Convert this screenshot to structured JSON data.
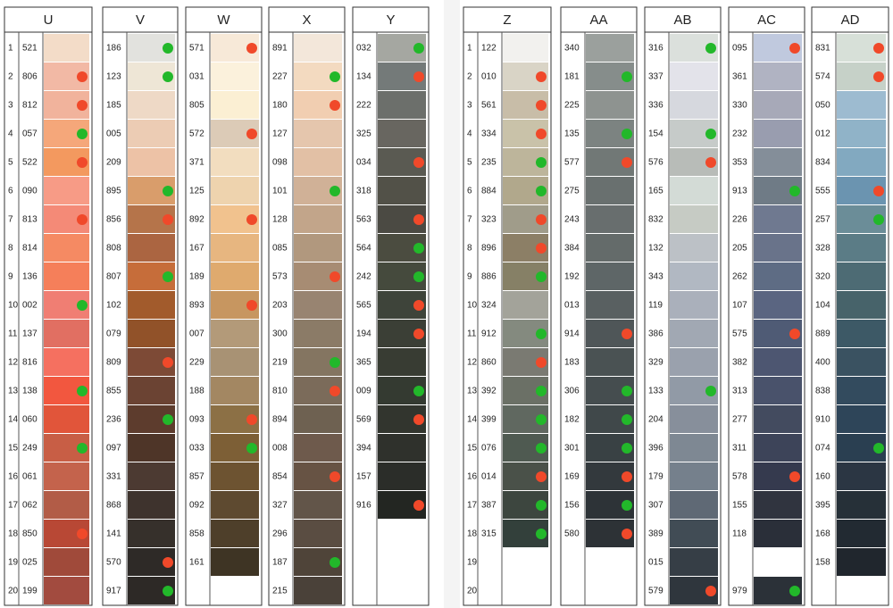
{
  "columns": [
    {
      "title": "U",
      "row_numbers": [
        "1",
        "2",
        "3",
        "4",
        "5",
        "6",
        "7",
        "8",
        "9",
        "10",
        "11",
        "12",
        "13",
        "14",
        "15",
        "16",
        "17",
        "18",
        "19",
        "20"
      ],
      "entries": [
        {
          "code": "521",
          "color": "#f3dcc8"
        },
        {
          "code": "806",
          "color": "#f2b9a5",
          "dot": "red"
        },
        {
          "code": "812",
          "color": "#f1b39c",
          "dot": "red"
        },
        {
          "code": "057",
          "color": "#f5a77a",
          "dot": "green"
        },
        {
          "code": "522",
          "color": "#f3995f",
          "dot": "red"
        },
        {
          "code": "090",
          "color": "#f79b86"
        },
        {
          "code": "813",
          "color": "#f48a77",
          "dot": "red"
        },
        {
          "code": "814",
          "color": "#f58a63"
        },
        {
          "code": "136",
          "color": "#f57f5a"
        },
        {
          "code": "002",
          "color": "#f07e73",
          "dot": "green"
        },
        {
          "code": "137",
          "color": "#e16f62"
        },
        {
          "code": "816",
          "color": "#f57060"
        },
        {
          "code": "138",
          "color": "#f2573f",
          "dot": "green"
        },
        {
          "code": "060",
          "color": "#e1553a"
        },
        {
          "code": "249",
          "color": "#c85e45",
          "dot": "green"
        },
        {
          "code": "061",
          "color": "#c4634c"
        },
        {
          "code": "062",
          "color": "#b25c47"
        },
        {
          "code": "850",
          "color": "#b84835",
          "dot": "red"
        },
        {
          "code": "025",
          "color": "#a04a3a"
        },
        {
          "code": "199",
          "color": "#a24b3f"
        }
      ]
    },
    {
      "title": "V",
      "entries": [
        {
          "code": "186",
          "color": "#e2e2de",
          "dot": "green"
        },
        {
          "code": "123",
          "color": "#eee6d6",
          "dot": "green"
        },
        {
          "code": "185",
          "color": "#eed9c6"
        },
        {
          "code": "005",
          "color": "#ecccb4"
        },
        {
          "code": "209",
          "color": "#edc2a6"
        },
        {
          "code": "895",
          "color": "#d99d6b",
          "dot": "green"
        },
        {
          "code": "856",
          "color": "#b5744a",
          "dot": "red"
        },
        {
          "code": "808",
          "color": "#ab6541"
        },
        {
          "code": "807",
          "color": "#c66d3a",
          "dot": "green"
        },
        {
          "code": "102",
          "color": "#a25b2c"
        },
        {
          "code": "079",
          "color": "#915229"
        },
        {
          "code": "809",
          "color": "#7d4a36",
          "dot": "red"
        },
        {
          "code": "855",
          "color": "#6b4333"
        },
        {
          "code": "236",
          "color": "#5d3c2d",
          "dot": "green"
        },
        {
          "code": "097",
          "color": "#4e3528"
        },
        {
          "code": "331",
          "color": "#4c3a32"
        },
        {
          "code": "868",
          "color": "#3e332d"
        },
        {
          "code": "141",
          "color": "#36302b"
        },
        {
          "code": "570",
          "color": "#2e2a27",
          "dot": "red"
        },
        {
          "code": "917",
          "color": "#2d2926",
          "dot": "green"
        }
      ]
    },
    {
      "title": "W",
      "entries": [
        {
          "code": "571",
          "color": "#f7e9d8",
          "dot": "red"
        },
        {
          "code": "031",
          "color": "#fbf1dc"
        },
        {
          "code": "805",
          "color": "#fbefd3"
        },
        {
          "code": "572",
          "color": "#dccbb7",
          "dot": "red"
        },
        {
          "code": "371",
          "color": "#f2ddbf"
        },
        {
          "code": "125",
          "color": "#eed3ae"
        },
        {
          "code": "892",
          "color": "#f1c28e",
          "dot": "red"
        },
        {
          "code": "167",
          "color": "#e7b680"
        },
        {
          "code": "189",
          "color": "#dfaa6e"
        },
        {
          "code": "893",
          "color": "#c79660",
          "dot": "red"
        },
        {
          "code": "007",
          "color": "#b39a79"
        },
        {
          "code": "229",
          "color": "#a89274"
        },
        {
          "code": "188",
          "color": "#a38762"
        },
        {
          "code": "093",
          "color": "#8c7045",
          "dot": "red"
        },
        {
          "code": "033",
          "color": "#7d5f36",
          "dot": "green"
        },
        {
          "code": "857",
          "color": "#6d5331"
        },
        {
          "code": "092",
          "color": "#5e4a30"
        },
        {
          "code": "858",
          "color": "#4e3f2a"
        },
        {
          "code": "161",
          "color": "#3e3424"
        }
      ]
    },
    {
      "title": "X",
      "entries": [
        {
          "code": "891",
          "color": "#f3e7da"
        },
        {
          "code": "227",
          "color": "#f3dac0",
          "dot": "green"
        },
        {
          "code": "180",
          "color": "#f1ceb1",
          "dot": "red"
        },
        {
          "code": "127",
          "color": "#e5c6ad"
        },
        {
          "code": "098",
          "color": "#e2c0a5"
        },
        {
          "code": "101",
          "color": "#d0b197",
          "dot": "green"
        },
        {
          "code": "128",
          "color": "#c2a58a"
        },
        {
          "code": "085",
          "color": "#b1987e"
        },
        {
          "code": "573",
          "color": "#a78c73",
          "dot": "red"
        },
        {
          "code": "203",
          "color": "#988471"
        },
        {
          "code": "300",
          "color": "#8b7b67"
        },
        {
          "code": "219",
          "color": "#847561",
          "dot": "green"
        },
        {
          "code": "810",
          "color": "#7b6b5a",
          "dot": "red"
        },
        {
          "code": "894",
          "color": "#6e6151"
        },
        {
          "code": "008",
          "color": "#6e5a4c"
        },
        {
          "code": "854",
          "color": "#675344",
          "dot": "red"
        },
        {
          "code": "327",
          "color": "#625549"
        },
        {
          "code": "296",
          "color": "#5a4d42"
        },
        {
          "code": "187",
          "color": "#4f4439",
          "dot": "green"
        },
        {
          "code": "215",
          "color": "#4a4139"
        }
      ]
    },
    {
      "title": "Y",
      "entries": [
        {
          "code": "032",
          "color": "#a5a7a1",
          "dot": "green"
        },
        {
          "code": "134",
          "color": "#747a79",
          "dot": "red"
        },
        {
          "code": "222",
          "color": "#6c6f6b"
        },
        {
          "code": "325",
          "color": "#686660"
        },
        {
          "code": "034",
          "color": "#5a5a52",
          "dot": "red"
        },
        {
          "code": "318",
          "color": "#525148"
        },
        {
          "code": "563",
          "color": "#4b4a43",
          "dot": "red"
        },
        {
          "code": "564",
          "color": "#4b4c40",
          "dot": "green"
        },
        {
          "code": "242",
          "color": "#454a3d",
          "dot": "green"
        },
        {
          "code": "565",
          "color": "#3e443a",
          "dot": "red"
        },
        {
          "code": "194",
          "color": "#3b3f36",
          "dot": "red"
        },
        {
          "code": "365",
          "color": "#383c33"
        },
        {
          "code": "009",
          "color": "#343a31",
          "dot": "green"
        },
        {
          "code": "569",
          "color": "#32352e",
          "dot": "red"
        },
        {
          "code": "394",
          "color": "#2f312c"
        },
        {
          "code": "157",
          "color": "#2b2d29"
        },
        {
          "code": "916",
          "color": "#232622",
          "dot": "red"
        }
      ]
    },
    {
      "title": "Z",
      "row_numbers": [
        "1",
        "2",
        "3",
        "4",
        "5",
        "6",
        "7",
        "8",
        "9",
        "10",
        "11",
        "12",
        "13",
        "14",
        "15",
        "16",
        "17",
        "18",
        "19",
        "20"
      ],
      "entries": [
        {
          "code": "122",
          "color": "#f2f1ee"
        },
        {
          "code": "010",
          "color": "#d9d4c6",
          "dot": "red"
        },
        {
          "code": "561",
          "color": "#c8bda8",
          "dot": "red"
        },
        {
          "code": "334",
          "color": "#c9c2a9",
          "dot": "red"
        },
        {
          "code": "235",
          "color": "#bdb59b",
          "dot": "green"
        },
        {
          "code": "884",
          "color": "#b1a88c",
          "dot": "green"
        },
        {
          "code": "323",
          "color": "#a09c8a",
          "dot": "red"
        },
        {
          "code": "896",
          "color": "#8c7f66",
          "dot": "red"
        },
        {
          "code": "886",
          "color": "#868066",
          "dot": "green"
        },
        {
          "code": "324",
          "color": "#a3a39a"
        },
        {
          "code": "912",
          "color": "#848a7f",
          "dot": "green"
        },
        {
          "code": "860",
          "color": "#7a7a72",
          "dot": "red"
        },
        {
          "code": "392",
          "color": "#6b7066",
          "dot": "green"
        },
        {
          "code": "399",
          "color": "#606860",
          "dot": "green"
        },
        {
          "code": "076",
          "color": "#4f5a51",
          "dot": "green"
        },
        {
          "code": "014",
          "color": "#4a5149",
          "dot": "red"
        },
        {
          "code": "387",
          "color": "#3d463f",
          "dot": "green"
        },
        {
          "code": "315",
          "color": "#33403b",
          "dot": "green"
        }
      ]
    },
    {
      "title": "AA",
      "entries": [
        {
          "code": "340",
          "color": "#9ba09d"
        },
        {
          "code": "181",
          "color": "#868d8b",
          "dot": "green"
        },
        {
          "code": "225",
          "color": "#8e9390"
        },
        {
          "code": "135",
          "color": "#7c8381",
          "dot": "green"
        },
        {
          "code": "577",
          "color": "#717876",
          "dot": "red"
        },
        {
          "code": "275",
          "color": "#69706f"
        },
        {
          "code": "243",
          "color": "#686e6e"
        },
        {
          "code": "384",
          "color": "#646b6a"
        },
        {
          "code": "192",
          "color": "#5e6667"
        },
        {
          "code": "013",
          "color": "#596061"
        },
        {
          "code": "914",
          "color": "#4f5658",
          "dot": "red"
        },
        {
          "code": "183",
          "color": "#4a5253"
        },
        {
          "code": "306",
          "color": "#454d4f",
          "dot": "green"
        },
        {
          "code": "182",
          "color": "#40484a",
          "dot": "green"
        },
        {
          "code": "301",
          "color": "#394144",
          "dot": "green"
        },
        {
          "code": "169",
          "color": "#33393d",
          "dot": "red"
        },
        {
          "code": "156",
          "color": "#2d3337",
          "dot": "green"
        },
        {
          "code": "580",
          "color": "#2d3236",
          "dot": "red"
        }
      ]
    },
    {
      "title": "AB",
      "entries": [
        {
          "code": "316",
          "color": "#dbe0dc",
          "dot": "green"
        },
        {
          "code": "337",
          "color": "#e3e3ea"
        },
        {
          "code": "336",
          "color": "#d6d8de"
        },
        {
          "code": "154",
          "color": "#c6cbc9",
          "dot": "green"
        },
        {
          "code": "576",
          "color": "#b8bcb8",
          "dot": "red"
        },
        {
          "code": "165",
          "color": "#d3dbd6"
        },
        {
          "code": "832",
          "color": "#c6cbc4"
        },
        {
          "code": "132",
          "color": "#bcc1c6"
        },
        {
          "code": "343",
          "color": "#b1b8c2"
        },
        {
          "code": "119",
          "color": "#aab0bb"
        },
        {
          "code": "386",
          "color": "#a1a8b3"
        },
        {
          "code": "329",
          "color": "#9aa1ad"
        },
        {
          "code": "133",
          "color": "#919aa6",
          "dot": "green"
        },
        {
          "code": "204",
          "color": "#878f9b"
        },
        {
          "code": "396",
          "color": "#7e8893"
        },
        {
          "code": "179",
          "color": "#75808c"
        },
        {
          "code": "307",
          "color": "#5f6975"
        },
        {
          "code": "389",
          "color": "#414c55"
        },
        {
          "code": "015",
          "color": "#363e46"
        },
        {
          "code": "579",
          "color": "#2f363d",
          "dot": "red"
        }
      ]
    },
    {
      "title": "AC",
      "entries": [
        {
          "code": "095",
          "color": "#c0c9de",
          "dot": "red"
        },
        {
          "code": "361",
          "color": "#b0b3c2"
        },
        {
          "code": "330",
          "color": "#a7a9b8"
        },
        {
          "code": "232",
          "color": "#999daf"
        },
        {
          "code": "353",
          "color": "#848e99"
        },
        {
          "code": "913",
          "color": "#6f7b86",
          "dot": "green"
        },
        {
          "code": "226",
          "color": "#6f7990"
        },
        {
          "code": "205",
          "color": "#69738a"
        },
        {
          "code": "262",
          "color": "#5e6c84"
        },
        {
          "code": "107",
          "color": "#5a6581"
        },
        {
          "code": "575",
          "color": "#4f5b75",
          "dot": "red"
        },
        {
          "code": "382",
          "color": "#4d5671"
        },
        {
          "code": "313",
          "color": "#49526b"
        },
        {
          "code": "277",
          "color": "#434b5f"
        },
        {
          "code": "311",
          "color": "#3d4459"
        },
        {
          "code": "578",
          "color": "#353a4e",
          "dot": "red"
        },
        {
          "code": "155",
          "color": "#30343f"
        },
        {
          "code": "118",
          "color": "#2a2f39"
        },
        {
          "code": null,
          "color": "#ffffff"
        },
        {
          "code": "979",
          "color": "#2b3138",
          "dot": "green"
        }
      ]
    },
    {
      "title": "AD",
      "entries": [
        {
          "code": "831",
          "color": "#d7e0d8",
          "dot": "red"
        },
        {
          "code": "574",
          "color": "#c6d1c8",
          "dot": "red"
        },
        {
          "code": "050",
          "color": "#9dbbd0"
        },
        {
          "code": "012",
          "color": "#90b3c8"
        },
        {
          "code": "834",
          "color": "#82a9c0"
        },
        {
          "code": "555",
          "color": "#6b94b0",
          "dot": "red"
        },
        {
          "code": "257",
          "color": "#6b8d98",
          "dot": "green"
        },
        {
          "code": "328",
          "color": "#5b7c86"
        },
        {
          "code": "320",
          "color": "#4d6b74"
        },
        {
          "code": "104",
          "color": "#47636a"
        },
        {
          "code": "889",
          "color": "#3d5966"
        },
        {
          "code": "400",
          "color": "#3a5261"
        },
        {
          "code": "838",
          "color": "#334b5e"
        },
        {
          "code": "910",
          "color": "#2e4559"
        },
        {
          "code": "074",
          "color": "#2a3f51",
          "dot": "green"
        },
        {
          "code": "160",
          "color": "#2b3643"
        },
        {
          "code": "395",
          "color": "#263038"
        },
        {
          "code": "168",
          "color": "#222a32"
        },
        {
          "code": "158",
          "color": "#20262d"
        }
      ]
    }
  ]
}
